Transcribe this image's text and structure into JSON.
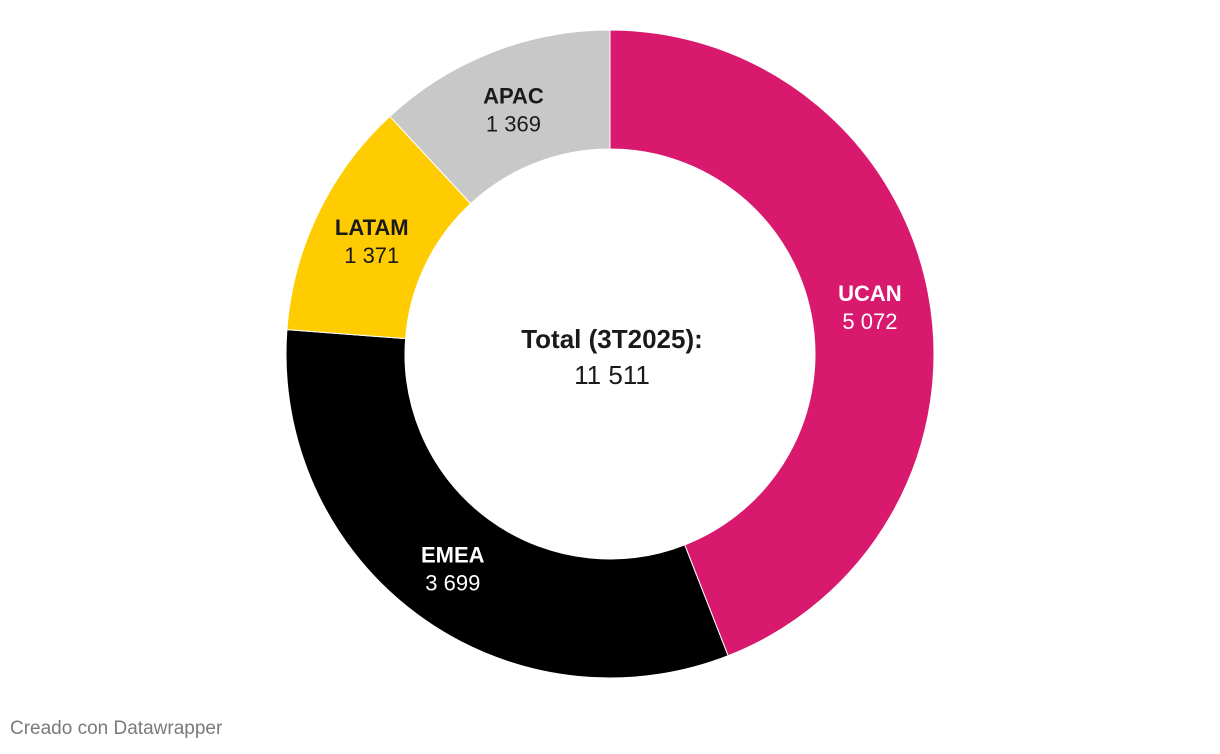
{
  "chart_data": {
    "type": "pie",
    "variant": "donut",
    "series": [
      {
        "name": "UCAN",
        "value": 5072,
        "label": "5 072",
        "color": "#d8196e",
        "text_color": "#ffffff"
      },
      {
        "name": "EMEA",
        "value": 3699,
        "label": "3 699",
        "color": "#000000",
        "text_color": "#ffffff"
      },
      {
        "name": "LATAM",
        "value": 1371,
        "label": "1 371",
        "color": "#fecc00",
        "text_color": "#1a1a1a"
      },
      {
        "name": "APAC",
        "value": 1369,
        "label": "1 369",
        "color": "#c8c8c8",
        "text_color": "#1a1a1a"
      }
    ],
    "center_title": "Total (3T2025):",
    "center_value": "11 511"
  },
  "footer": {
    "credit": "Creado con Datawrapper"
  }
}
